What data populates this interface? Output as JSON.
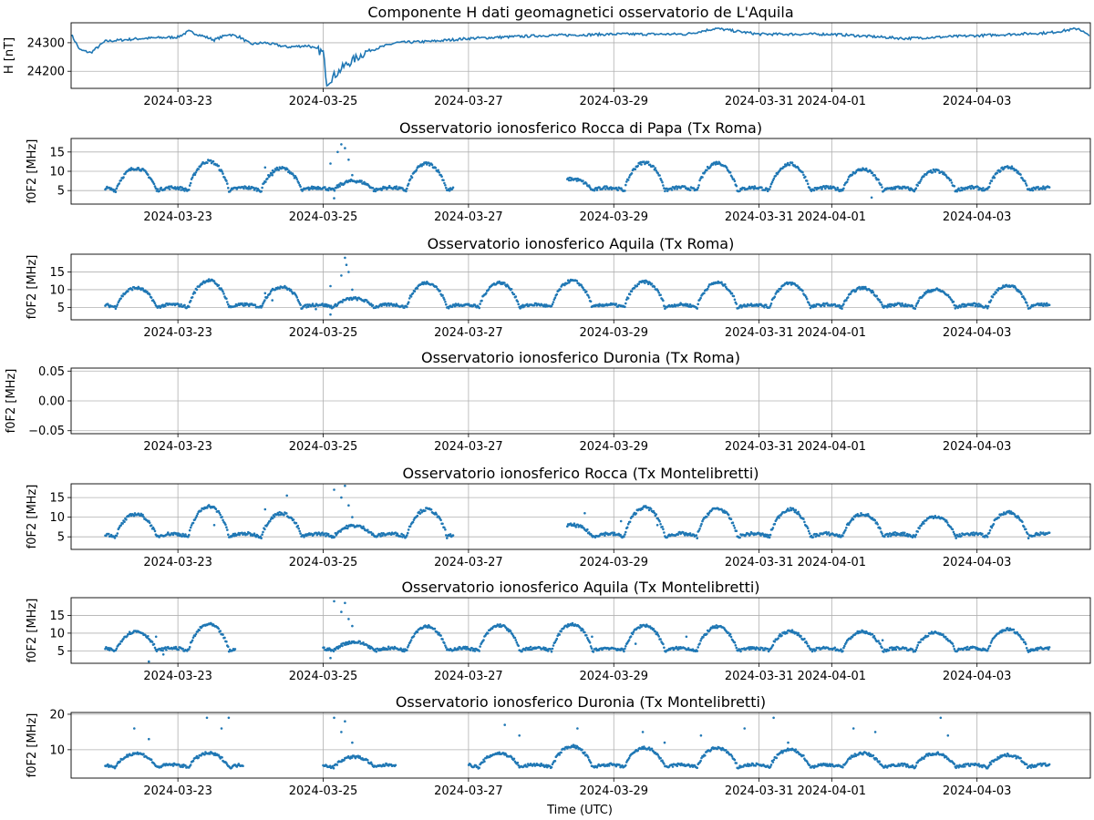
{
  "colors": {
    "series": "#1f77b4",
    "grid": "#b0b0b0",
    "axis": "#000000"
  },
  "x_label": "Time (UTC)",
  "x_tick_labels": [
    "2024-03-23",
    "2024-03-25",
    "2024-03-27",
    "2024-03-29",
    "2024-03-31",
    "2024-04-01",
    "2024-04-03"
  ],
  "chart_data": [
    {
      "type": "line",
      "title": "Componente H dati geomagnetici osservatorio de L'Aquila",
      "ylabel": "H [nT]",
      "yticks": [
        "24200",
        "24300"
      ],
      "ylim": [
        24140,
        24370
      ],
      "xlim_days": [
        -1.47,
        12.56
      ],
      "description_points": [
        [
          -1.47,
          24330
        ],
        [
          -1.35,
          24275
        ],
        [
          -1.2,
          24265
        ],
        [
          -1.0,
          24305
        ],
        [
          -0.5,
          24315
        ],
        [
          0,
          24320
        ],
        [
          0.15,
          24340
        ],
        [
          0.5,
          24310
        ],
        [
          0.7,
          24330
        ],
        [
          0.85,
          24320
        ],
        [
          1.0,
          24295
        ],
        [
          1.2,
          24300
        ],
        [
          1.5,
          24285
        ],
        [
          1.8,
          24290
        ],
        [
          2.0,
          24265
        ],
        [
          2.05,
          24160
        ],
        [
          2.3,
          24220
        ],
        [
          2.6,
          24270
        ],
        [
          3.0,
          24300
        ],
        [
          3.5,
          24305
        ],
        [
          4.0,
          24315
        ],
        [
          5.0,
          24325
        ],
        [
          6.0,
          24330
        ],
        [
          7.0,
          24330
        ],
        [
          7.4,
          24350
        ],
        [
          8.0,
          24330
        ],
        [
          9.0,
          24330
        ],
        [
          10.0,
          24315
        ],
        [
          11.0,
          24325
        ],
        [
          12.0,
          24335
        ],
        [
          12.4,
          24350
        ],
        [
          12.56,
          24320
        ]
      ]
    },
    {
      "type": "scatter",
      "title": "Osservatorio ionosferico Rocca di Papa (Tx Roma)",
      "ylabel": "f0F2 [MHz]",
      "yticks": [
        "5",
        "10",
        "15"
      ],
      "ylim": [
        1.5,
        18.5
      ],
      "xlim_days": [
        -1.47,
        12.56
      ],
      "days": [
        -1,
        0,
        1,
        2,
        3,
        6,
        7,
        8,
        9,
        10,
        11,
        12
      ],
      "peaks": [
        10.8,
        12.6,
        10.8,
        7.5,
        12,
        12.3,
        12.2,
        11.9,
        10.5,
        10.1,
        11.1,
        0
      ],
      "gaps": [
        [
          3.8,
          5.35
        ]
      ],
      "outliers": [
        [
          1.2,
          11
        ],
        [
          1.3,
          9
        ],
        [
          1.9,
          5.5
        ],
        [
          2.1,
          12
        ],
        [
          2.2,
          15
        ],
        [
          2.25,
          17
        ],
        [
          2.3,
          16
        ],
        [
          2.35,
          13
        ],
        [
          2.4,
          9
        ],
        [
          2.15,
          3
        ],
        [
          9.55,
          3.2
        ]
      ]
    },
    {
      "type": "scatter",
      "title": "Osservatorio ionosferico Aquila (Tx Roma)",
      "ylabel": "f0F2 [MHz]",
      "yticks": [
        "5",
        "10",
        "15"
      ],
      "ylim": [
        1.5,
        20
      ],
      "xlim_days": [
        -1.47,
        12.56
      ],
      "days": [
        -1,
        0,
        1,
        2,
        3,
        4,
        5,
        6,
        7,
        8,
        9,
        10,
        11,
        12
      ],
      "peaks": [
        10.5,
        12.6,
        10.8,
        7.5,
        12,
        12,
        12.5,
        12.2,
        12,
        11.8,
        10.5,
        10,
        11.2,
        0
      ],
      "gaps": [],
      "outliers": [
        [
          1.2,
          9
        ],
        [
          1.3,
          7
        ],
        [
          1.9,
          4.5
        ],
        [
          2.1,
          11
        ],
        [
          2.25,
          14
        ],
        [
          2.3,
          19
        ],
        [
          2.32,
          17
        ],
        [
          2.35,
          15
        ],
        [
          2.4,
          10
        ],
        [
          2.1,
          3
        ]
      ]
    },
    {
      "type": "scatter",
      "title": "Osservatorio ionosferico Duronia (Tx Roma)",
      "ylabel": "f0F2 [MHz]",
      "yticks": [
        "−0.05",
        "0.00",
        "0.05"
      ],
      "ylim": [
        -0.055,
        0.055
      ],
      "xlim_days": [
        -1.47,
        12.56
      ],
      "days": [],
      "peaks": [],
      "gaps": [],
      "outliers": []
    },
    {
      "type": "scatter",
      "title": "Osservatorio ionosferico Rocca (Tx Montelibretti)",
      "ylabel": "f0F2 [MHz]",
      "yticks": [
        "5",
        "10",
        "15"
      ],
      "ylim": [
        1.8,
        18.5
      ],
      "xlim_days": [
        -1.47,
        12.56
      ],
      "days": [
        -1,
        0,
        1,
        2,
        3,
        6,
        7,
        8,
        9,
        10,
        11,
        12
      ],
      "peaks": [
        10.8,
        12.8,
        11,
        7.8,
        12,
        12.5,
        12.2,
        12,
        10.8,
        10.2,
        11.3,
        0
      ],
      "gaps": [
        [
          3.8,
          5.35
        ]
      ],
      "outliers": [
        [
          0.5,
          8
        ],
        [
          1.5,
          15.5
        ],
        [
          1.2,
          12
        ],
        [
          2.15,
          17
        ],
        [
          2.25,
          15
        ],
        [
          2.3,
          18
        ],
        [
          2.35,
          13
        ],
        [
          2.4,
          10
        ],
        [
          2.2,
          6
        ],
        [
          5.6,
          11
        ],
        [
          6.1,
          9
        ],
        [
          6.6,
          8
        ]
      ]
    },
    {
      "type": "scatter",
      "title": "Osservatorio ionosferico Aquila (Tx Montelibretti)",
      "ylabel": "f0F2 [MHz]",
      "yticks": [
        "5",
        "10",
        "15"
      ],
      "ylim": [
        1.5,
        20
      ],
      "xlim_days": [
        -1.47,
        12.56
      ],
      "days": [
        -1,
        0,
        1,
        2,
        3,
        4,
        5,
        6,
        7,
        8,
        9,
        10,
        11,
        12
      ],
      "peaks": [
        10.5,
        12.5,
        0,
        7.5,
        12,
        12.2,
        12.5,
        12.2,
        11.8,
        10.5,
        10.4,
        10.1,
        11.1,
        0
      ],
      "gaps": [
        [
          0.8,
          2.0
        ]
      ],
      "outliers": [
        [
          -0.3,
          9
        ],
        [
          -0.4,
          2
        ],
        [
          -0.2,
          4
        ],
        [
          2.15,
          19
        ],
        [
          2.25,
          16
        ],
        [
          2.3,
          18.5
        ],
        [
          2.35,
          14
        ],
        [
          2.4,
          12
        ],
        [
          2.1,
          3
        ],
        [
          5.7,
          9
        ],
        [
          6.3,
          7
        ],
        [
          7.0,
          9
        ],
        [
          9.7,
          8
        ]
      ]
    },
    {
      "type": "scatter",
      "title": "Osservatorio ionosferico Duronia (Tx Montelibretti)",
      "ylabel": "f0F2 [MHz]",
      "yticks": [
        "10",
        "20"
      ],
      "ylim": [
        2,
        20.5
      ],
      "xlim_days": [
        -1.47,
        12.56
      ],
      "days": [
        -1,
        0,
        1,
        2,
        3,
        4,
        5,
        6,
        7,
        8,
        9,
        10,
        11,
        12
      ],
      "peaks": [
        9,
        9,
        0,
        8,
        0,
        9,
        11,
        10.5,
        10.5,
        10,
        9,
        9,
        8.5,
        0
      ],
      "gaps": [
        [
          0.9,
          2.0
        ],
        [
          3.0,
          4.0
        ]
      ],
      "outliers": [
        [
          -0.6,
          16
        ],
        [
          -0.4,
          13
        ],
        [
          0.4,
          19
        ],
        [
          0.6,
          16
        ],
        [
          0.7,
          19
        ],
        [
          2.15,
          19
        ],
        [
          2.25,
          15
        ],
        [
          2.3,
          18
        ],
        [
          2.4,
          12
        ],
        [
          4.5,
          17
        ],
        [
          4.7,
          14
        ],
        [
          5.5,
          16
        ],
        [
          6.4,
          15
        ],
        [
          6.7,
          12
        ],
        [
          7.2,
          14
        ],
        [
          7.8,
          16
        ],
        [
          8.2,
          19
        ],
        [
          8.4,
          12
        ],
        [
          9.3,
          16
        ],
        [
          9.6,
          15
        ],
        [
          10.5,
          19
        ],
        [
          10.6,
          14
        ]
      ]
    }
  ]
}
